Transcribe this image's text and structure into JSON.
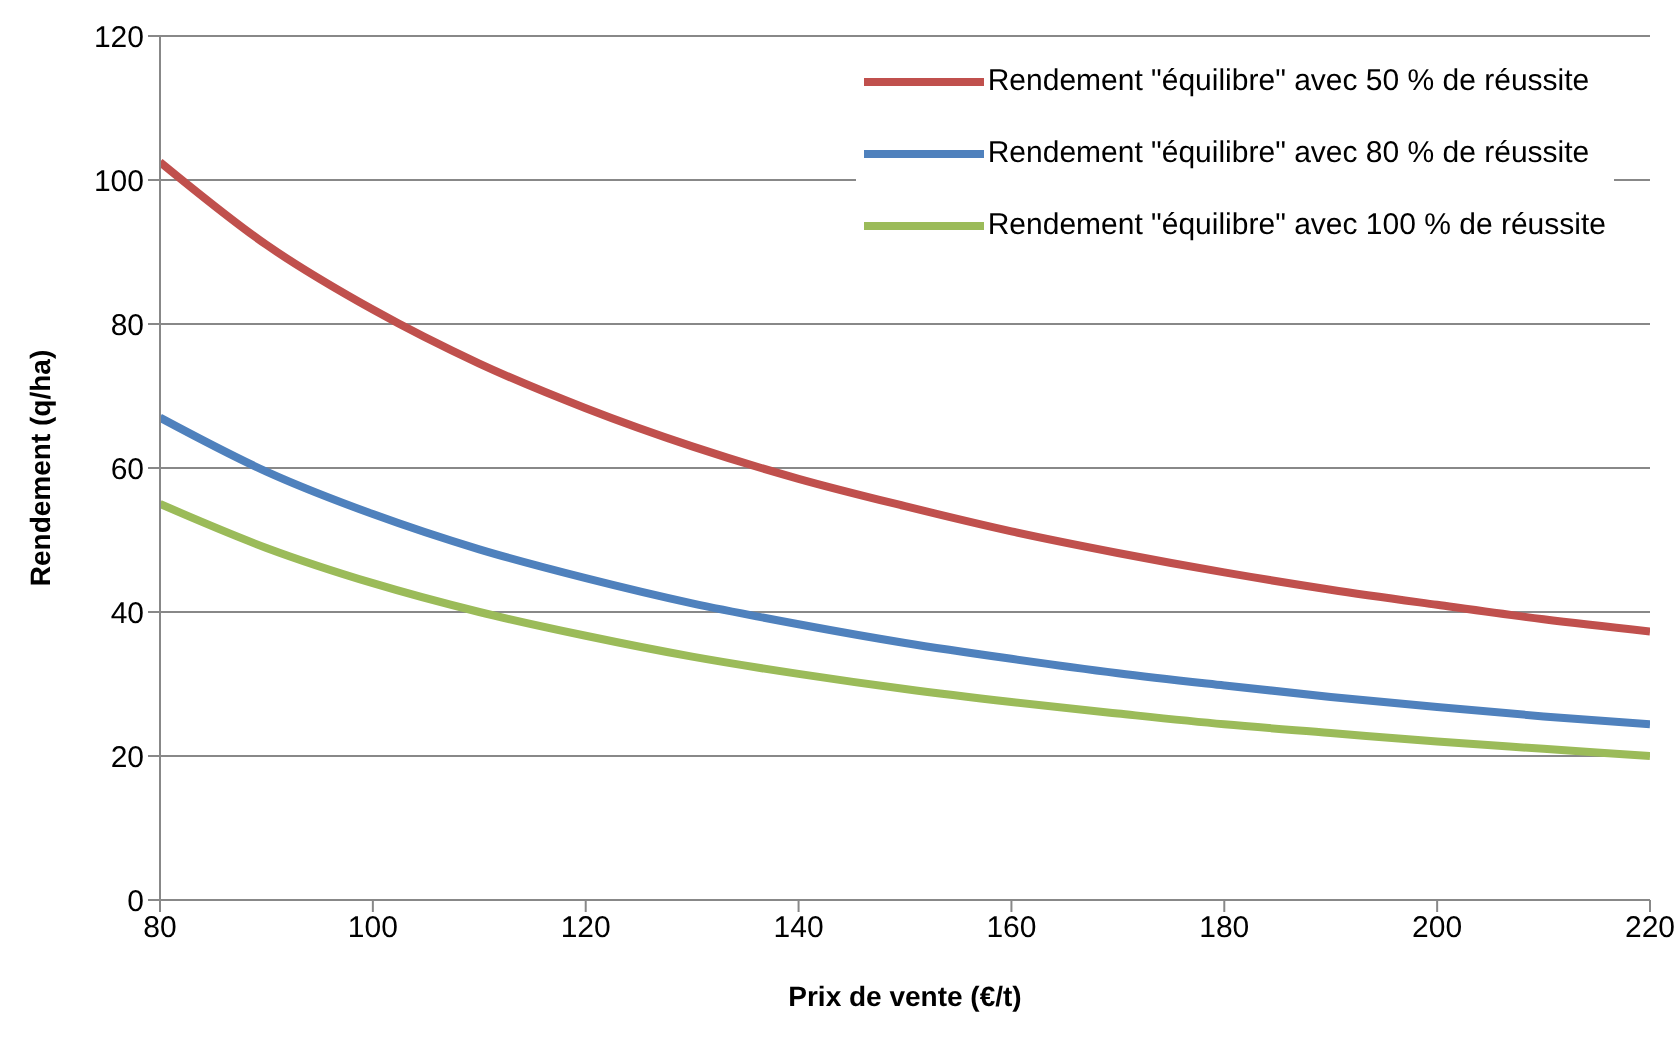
{
  "chart_data": {
    "type": "line",
    "xlabel": "Prix de vente (€/t)",
    "ylabel": "Rendement (q/ha)",
    "x": [
      80,
      90,
      100,
      110,
      120,
      130,
      140,
      150,
      160,
      170,
      180,
      190,
      200,
      210,
      220
    ],
    "series": [
      {
        "name": "Rendement \"équilibre\" avec 50 % de réussite",
        "color": "#c0504d",
        "values": [
          102.5,
          91,
          82,
          74.5,
          68.3,
          63,
          58.5,
          54.7,
          51.2,
          48.2,
          45.5,
          43.1,
          41,
          39,
          37.3
        ]
      },
      {
        "name": "Rendement \"équilibre\" avec 80 % de réussite",
        "color": "#4f81bd",
        "values": [
          67,
          59.5,
          53.6,
          48.7,
          44.7,
          41.2,
          38.3,
          35.7,
          33.5,
          31.5,
          29.8,
          28.2,
          26.8,
          25.5,
          24.4
        ]
      },
      {
        "name": "Rendement \"équilibre\" avec 100 % de réussite",
        "color": "#9bbb59",
        "values": [
          55,
          48.9,
          44,
          40,
          36.7,
          33.8,
          31.4,
          29.3,
          27.5,
          25.9,
          24.4,
          23.2,
          22,
          21,
          20
        ]
      }
    ],
    "xlim": [
      80,
      220
    ],
    "xticks": [
      80,
      100,
      120,
      140,
      160,
      180,
      200,
      220
    ],
    "ylim": [
      0,
      120
    ],
    "yticks": [
      0,
      20,
      40,
      60,
      80,
      100,
      120
    ],
    "grid": "y",
    "legend": "top right",
    "marker": "none",
    "line_style": "solid"
  }
}
